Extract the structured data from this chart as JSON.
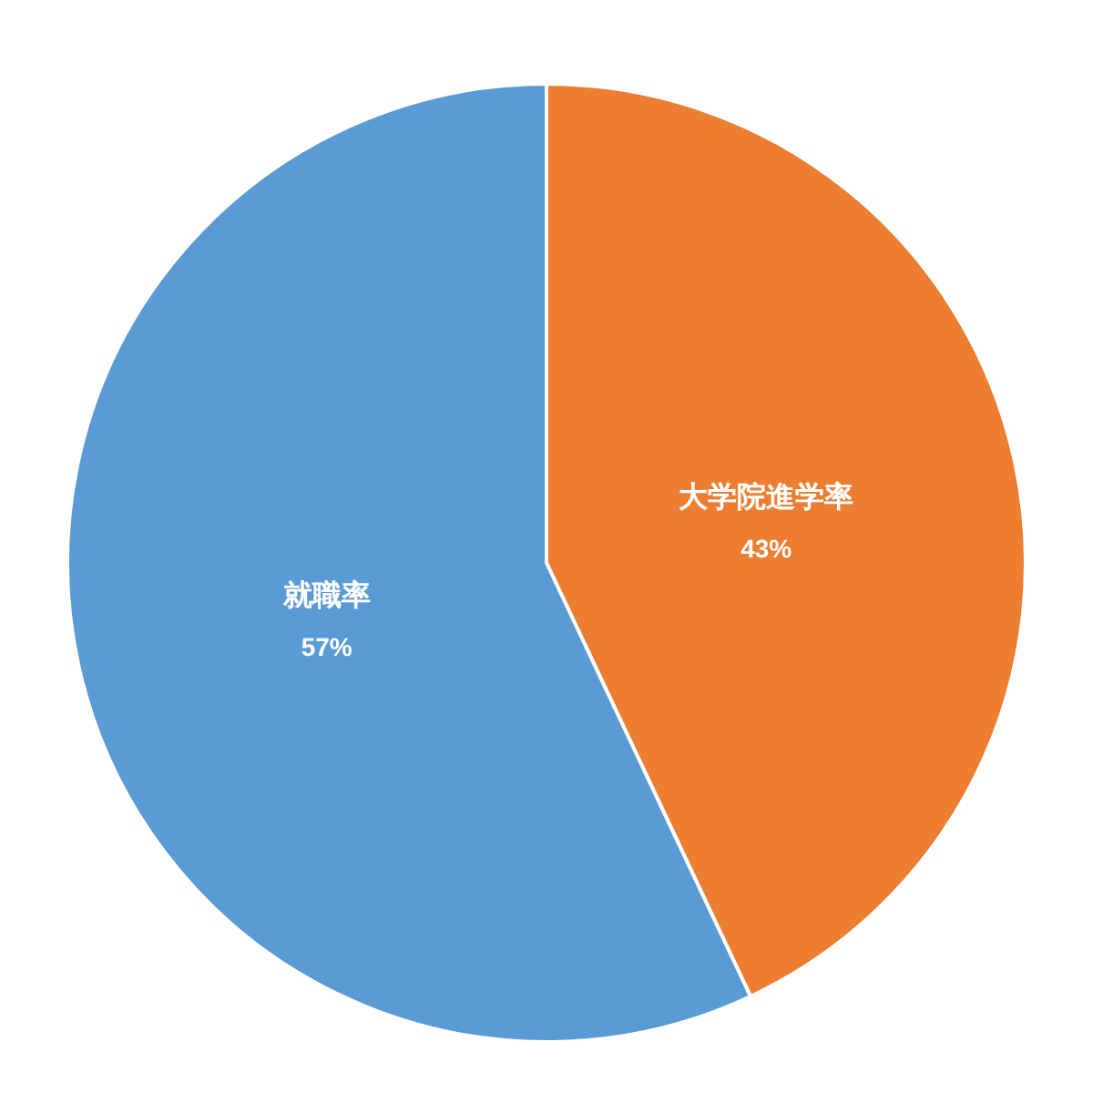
{
  "chart_data": {
    "type": "pie",
    "categories": [
      "大学院進学率",
      "就職率"
    ],
    "values": [
      43,
      57
    ],
    "colors": [
      "#ed7d31",
      "#5b9bd5"
    ],
    "value_labels": [
      "43%",
      "57%"
    ]
  }
}
